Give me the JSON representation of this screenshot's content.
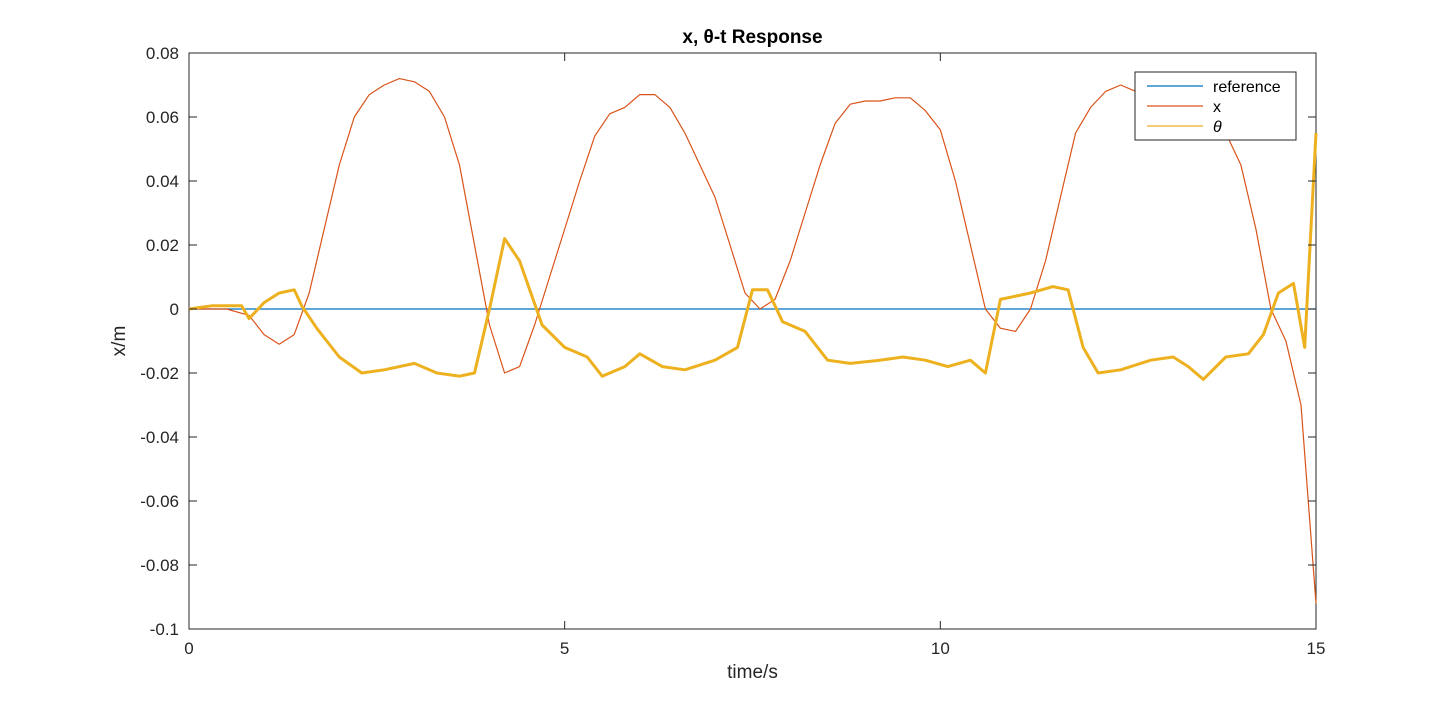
{
  "chart_data": {
    "type": "line",
    "title": "x, θ-t Response",
    "xlabel": "time/s",
    "ylabel": "x/m",
    "xlim": [
      0,
      15
    ],
    "ylim": [
      -0.1,
      0.08
    ],
    "xticks": [
      "0",
      "5",
      "10",
      "15"
    ],
    "yticks": [
      "-0.1",
      "-0.08",
      "-0.06",
      "-0.04",
      "-0.02",
      "0",
      "0.02",
      "0.04",
      "0.06",
      "0.08"
    ],
    "grid": false,
    "legend_position": "top-right",
    "colors": {
      "reference": "#0072BD",
      "x": "#D95319",
      "theta": "#EDB120"
    },
    "series": [
      {
        "name": "reference",
        "x": [
          0,
          15
        ],
        "y": [
          0,
          0
        ]
      },
      {
        "name": "x",
        "x": [
          0,
          0.5,
          0.8,
          1.0,
          1.2,
          1.4,
          1.6,
          1.8,
          2.0,
          2.2,
          2.4,
          2.6,
          2.8,
          3.0,
          3.2,
          3.4,
          3.6,
          3.8,
          4.0,
          4.2,
          4.4,
          4.6,
          4.8,
          5.0,
          5.2,
          5.4,
          5.6,
          5.8,
          6.0,
          6.2,
          6.4,
          6.6,
          6.8,
          7.0,
          7.2,
          7.4,
          7.6,
          7.8,
          8.0,
          8.2,
          8.4,
          8.6,
          8.8,
          9.0,
          9.2,
          9.4,
          9.6,
          9.8,
          10.0,
          10.2,
          10.4,
          10.6,
          10.8,
          11.0,
          11.2,
          11.4,
          11.6,
          11.8,
          12.0,
          12.2,
          12.4,
          12.6,
          12.8,
          13.0,
          13.2,
          13.4,
          13.6,
          13.8,
          14.0,
          14.2,
          14.4,
          14.6,
          14.8,
          15.0
        ],
        "y": [
          0,
          0,
          -0.002,
          -0.008,
          -0.011,
          -0.008,
          0.005,
          0.025,
          0.045,
          0.06,
          0.067,
          0.07,
          0.072,
          0.071,
          0.068,
          0.06,
          0.045,
          0.02,
          -0.005,
          -0.02,
          -0.018,
          -0.005,
          0.01,
          0.025,
          0.04,
          0.054,
          0.061,
          0.063,
          0.067,
          0.067,
          0.063,
          0.055,
          0.045,
          0.035,
          0.02,
          0.005,
          0.0,
          0.003,
          0.015,
          0.03,
          0.045,
          0.058,
          0.064,
          0.065,
          0.065,
          0.066,
          0.066,
          0.062,
          0.056,
          0.04,
          0.02,
          0.0,
          -0.006,
          -0.007,
          0.0,
          0.015,
          0.035,
          0.055,
          0.063,
          0.068,
          0.07,
          0.068,
          0.065,
          0.064,
          0.063,
          0.062,
          0.06,
          0.055,
          0.045,
          0.025,
          0.0,
          -0.01,
          -0.03,
          -0.092
        ]
      },
      {
        "name": "θ",
        "x": [
          0,
          0.3,
          0.7,
          0.8,
          1.0,
          1.2,
          1.4,
          1.5,
          1.7,
          2.0,
          2.3,
          2.6,
          3.0,
          3.3,
          3.6,
          3.8,
          4.0,
          4.2,
          4.4,
          4.7,
          5.0,
          5.3,
          5.5,
          5.8,
          6.0,
          6.3,
          6.6,
          7.0,
          7.3,
          7.5,
          7.7,
          7.9,
          8.2,
          8.5,
          8.8,
          9.2,
          9.5,
          9.8,
          10.1,
          10.4,
          10.6,
          10.8,
          11.2,
          11.5,
          11.7,
          11.9,
          12.1,
          12.4,
          12.8,
          13.1,
          13.3,
          13.5,
          13.8,
          14.1,
          14.3,
          14.5,
          14.7,
          14.85,
          15.0
        ],
        "y": [
          0,
          0.001,
          0.001,
          -0.003,
          0.002,
          0.005,
          0.006,
          0.001,
          -0.006,
          -0.015,
          -0.02,
          -0.019,
          -0.017,
          -0.02,
          -0.021,
          -0.02,
          0.0,
          0.022,
          0.015,
          -0.005,
          -0.012,
          -0.015,
          -0.021,
          -0.018,
          -0.014,
          -0.018,
          -0.019,
          -0.016,
          -0.012,
          0.006,
          0.006,
          -0.004,
          -0.007,
          -0.016,
          -0.017,
          -0.016,
          -0.015,
          -0.016,
          -0.018,
          -0.016,
          -0.02,
          0.003,
          0.005,
          0.007,
          0.006,
          -0.012,
          -0.02,
          -0.019,
          -0.016,
          -0.015,
          -0.018,
          -0.022,
          -0.015,
          -0.014,
          -0.008,
          0.005,
          0.008,
          -0.012,
          0.055
        ]
      }
    ],
    "legend": [
      "reference",
      "x",
      "θ"
    ]
  }
}
